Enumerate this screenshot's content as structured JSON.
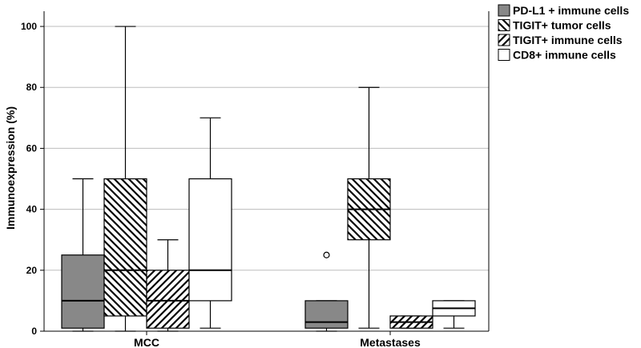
{
  "chart_data": {
    "type": "box",
    "title": "",
    "xlabel": "",
    "ylabel": "Immunoexpression (%)",
    "ylim": [
      0,
      105
    ],
    "yticks": [
      0,
      20,
      40,
      60,
      80,
      100
    ],
    "grid": "horizontal",
    "legend_position": "top-right",
    "categories": [
      "MCC",
      "Metastases"
    ],
    "series": [
      {
        "name": "PD-L1 + immune cells",
        "fill": "#888888",
        "pattern": "solid",
        "boxes": [
          {
            "min": 0,
            "q1": 1,
            "median": 10,
            "q3": 25,
            "max": 50,
            "outliers": []
          },
          {
            "min": 0,
            "q1": 1,
            "median": 3,
            "q3": 10,
            "max": 10,
            "outliers": [
              25
            ]
          }
        ]
      },
      {
        "name": "TIGIT+ tumor cells",
        "fill": "#ffffff",
        "pattern": "backslash",
        "boxes": [
          {
            "min": 0,
            "q1": 5,
            "median": 20,
            "q3": 50,
            "max": 100,
            "outliers": []
          },
          {
            "min": 1,
            "q1": 30,
            "median": 40,
            "q3": 50,
            "max": 80,
            "outliers": []
          }
        ]
      },
      {
        "name": "TIGIT+ immune cells",
        "fill": "#ffffff",
        "pattern": "slash",
        "boxes": [
          {
            "min": 0,
            "q1": 1,
            "median": 10,
            "q3": 20,
            "max": 30,
            "outliers": []
          },
          {
            "min": 1,
            "q1": 1,
            "median": 3,
            "q3": 5,
            "max": 5,
            "outliers": []
          }
        ]
      },
      {
        "name": "CD8+ immune cells",
        "fill": "#ffffff",
        "pattern": "none",
        "boxes": [
          {
            "min": 1,
            "q1": 10,
            "median": 20,
            "q3": 50,
            "max": 70,
            "outliers": []
          },
          {
            "min": 1,
            "q1": 5,
            "median": 7.5,
            "q3": 10,
            "max": 10,
            "outliers": []
          }
        ]
      }
    ]
  }
}
